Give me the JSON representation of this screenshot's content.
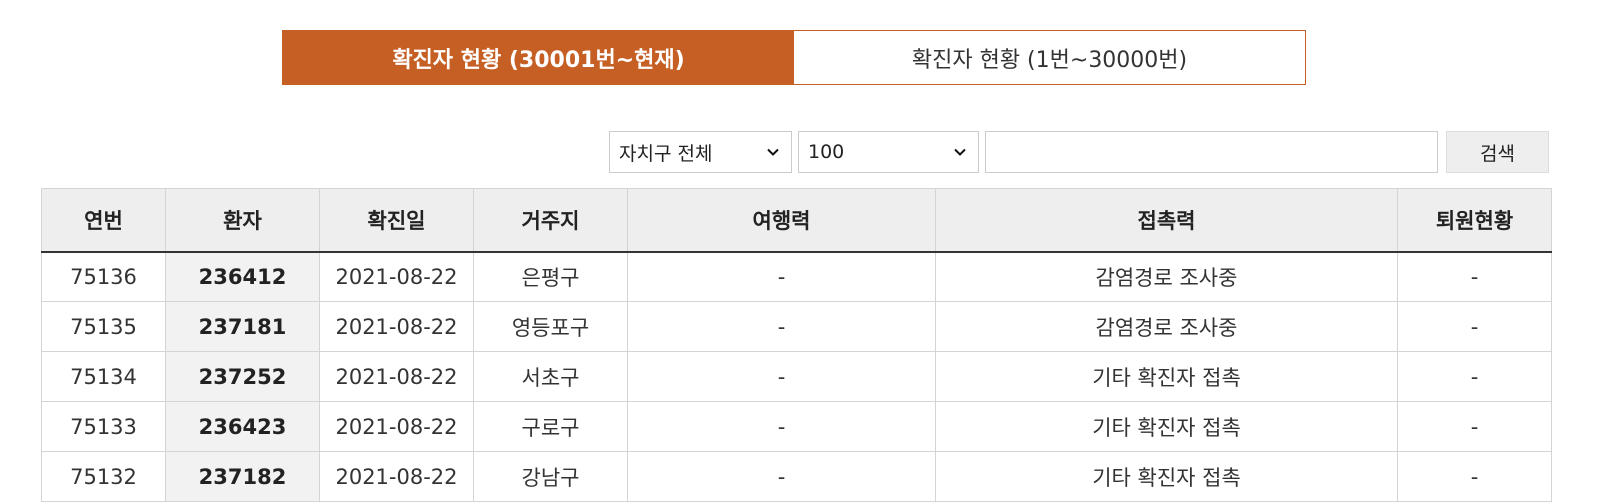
{
  "tabs": [
    {
      "label": "확진자 현황 (30001번~현재)",
      "active": true
    },
    {
      "label": "확진자 현황 (1번~30000번)",
      "active": false
    }
  ],
  "filters": {
    "district_selected": "자치구 전체",
    "count_selected": "100",
    "search_value": "",
    "search_button_label": "검색"
  },
  "table": {
    "headers": [
      "연번",
      "환자",
      "확진일",
      "거주지",
      "여행력",
      "접촉력",
      "퇴원현황"
    ],
    "rows": [
      [
        "75136",
        "236412",
        "2021-08-22",
        "은평구",
        "-",
        "감염경로 조사중",
        "-"
      ],
      [
        "75135",
        "237181",
        "2021-08-22",
        "영등포구",
        "-",
        "감염경로 조사중",
        "-"
      ],
      [
        "75134",
        "237252",
        "2021-08-22",
        "서초구",
        "-",
        "기타 확진자 접촉",
        "-"
      ],
      [
        "75133",
        "236423",
        "2021-08-22",
        "구로구",
        "-",
        "기타 확진자 접촉",
        "-"
      ],
      [
        "75132",
        "237182",
        "2021-08-22",
        "강남구",
        "-",
        "기타 확진자 접촉",
        "-"
      ]
    ]
  },
  "colors": {
    "accent": "#c55f23"
  }
}
